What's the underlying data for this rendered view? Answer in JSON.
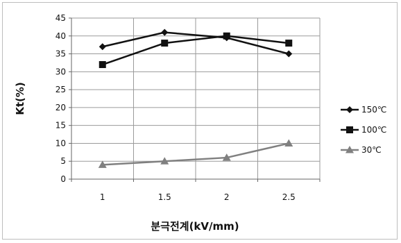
{
  "chart_data": {
    "type": "line",
    "title": "",
    "xlabel": "분극전계(kV/mm)",
    "ylabel": "Kt(%)",
    "categories": [
      "1",
      "1.5",
      "2",
      "2.5"
    ],
    "ylim": [
      0,
      45
    ],
    "yticks": [
      0,
      5,
      10,
      15,
      20,
      25,
      30,
      35,
      40,
      45
    ],
    "grid": "horizontal",
    "legend_position": "right",
    "series": [
      {
        "name": "150℃",
        "values": [
          37,
          41,
          39.5,
          35
        ],
        "marker": "diamond",
        "color": "#111111"
      },
      {
        "name": "100℃",
        "values": [
          32,
          38,
          40,
          38
        ],
        "marker": "square",
        "color": "#111111"
      },
      {
        "name": "30℃",
        "values": [
          4,
          5,
          6,
          10
        ],
        "marker": "triangle",
        "color": "#808080"
      }
    ]
  }
}
